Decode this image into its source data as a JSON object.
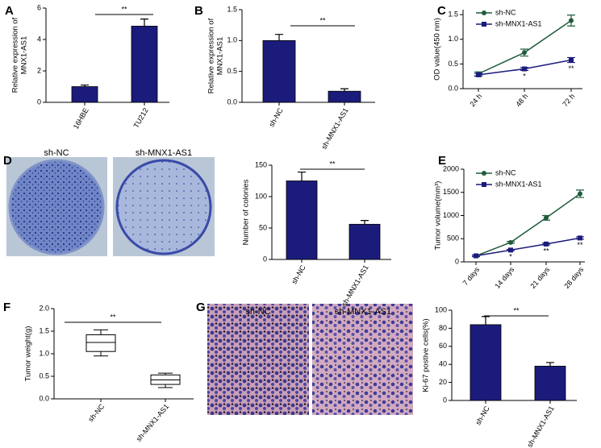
{
  "chart_data": [
    {
      "type": "bar",
      "label": "A",
      "ylabel": [
        "Relative expression of",
        "MNX1-AS1"
      ],
      "categories": [
        "16HBE",
        "TU212"
      ],
      "values": [
        1.0,
        4.85
      ],
      "errors": [
        0.1,
        0.45
      ],
      "color": "#1b1b7c",
      "ylim": [
        0,
        6
      ],
      "yticks": [
        0,
        2,
        4,
        6
      ],
      "annotations": [
        "**"
      ]
    },
    {
      "type": "bar",
      "label": "B",
      "ylabel": [
        "Relative expression of",
        "MNX1-AS1"
      ],
      "categories": [
        "sh-NC",
        "sh-MNX1-AS1"
      ],
      "values": [
        1.0,
        0.18
      ],
      "errors": [
        0.1,
        0.04
      ],
      "color": "#1b1b7c",
      "ylim": [
        0,
        1.5
      ],
      "yticks": [
        {
          "value": 0,
          "label": "0.0"
        },
        0.5,
        {
          "value": 1,
          "label": "1.0"
        },
        1.5
      ],
      "annotations": [
        "**"
      ]
    },
    {
      "type": "line",
      "label": "C",
      "ylabel": "OD value(450 nm)",
      "categories": [
        "24 h",
        "48 h",
        "72 h"
      ],
      "series": [
        {
          "name": "sh-NC",
          "color": "#1f5c3c",
          "marker": "circle",
          "values": [
            0.3,
            0.73,
            1.38
          ],
          "errors": [
            0.04,
            0.07,
            0.11
          ]
        },
        {
          "name": "sh-MNX1-AS1",
          "color": "#1b1b7c",
          "marker": "square",
          "values": [
            0.28,
            0.4,
            0.58
          ],
          "errors": [
            0.03,
            0.03,
            0.05
          ]
        }
      ],
      "ylim": [
        0,
        1.6
      ],
      "yticks": [
        {
          "value": 0,
          "label": "0.0"
        },
        0.5,
        {
          "value": 1,
          "label": "1.0"
        },
        1.5
      ],
      "annotations": [
        "*",
        "**"
      ]
    },
    {
      "type": "bar",
      "label": "D",
      "image_labels": [
        "sh-NC",
        "sh-MNX1-AS1"
      ],
      "ylabel": "Number of colonies",
      "categories": [
        "sh-NC",
        "sh-MNX1-AS1"
      ],
      "values": [
        125,
        56
      ],
      "errors": [
        14,
        6
      ],
      "color": "#1b1b7c",
      "ylim": [
        0,
        150
      ],
      "yticks": [
        0,
        50,
        100,
        150
      ],
      "annotations": [
        "**"
      ]
    },
    {
      "type": "line",
      "label": "E",
      "ylabel": "Tumor volume(mm³)",
      "categories": [
        "7 days",
        "14 days",
        "21 days",
        "28 days"
      ],
      "series": [
        {
          "name": "sh-NC",
          "color": "#1f5c3c",
          "marker": "circle",
          "values": [
            130,
            420,
            950,
            1470
          ],
          "errors": [
            20,
            20,
            50,
            80
          ]
        },
        {
          "name": "sh-MNX1-AS1",
          "color": "#1b1b7c",
          "marker": "square",
          "values": [
            130,
            255,
            385,
            515
          ],
          "errors": [
            15,
            15,
            20,
            25
          ]
        }
      ],
      "ylim": [
        0,
        2000
      ],
      "yticks": [
        0,
        500,
        1000,
        1500,
        2000
      ],
      "annotations": [
        "*",
        "**",
        "**"
      ]
    },
    {
      "type": "box",
      "label": "F",
      "ylabel": "Tumor weight(g)",
      "categories": [
        "sh-NC",
        "sh-MNX1-AS1"
      ],
      "boxes": [
        {
          "min": 0.95,
          "q1": 1.05,
          "median": 1.25,
          "q3": 1.42,
          "max": 1.53
        },
        {
          "min": 0.25,
          "q1": 0.32,
          "median": 0.42,
          "q3": 0.53,
          "max": 0.57
        }
      ],
      "ylim": [
        0,
        2
      ],
      "yticks": [
        {
          "value": 0,
          "label": "0.0"
        },
        0.5,
        {
          "value": 1,
          "label": "1.0"
        },
        1.5,
        {
          "value": 2,
          "label": "2.0"
        }
      ],
      "annotations": [
        "**"
      ]
    },
    {
      "type": "bar",
      "label": "G",
      "image_labels": [
        "sh-NC",
        "sh-MNX1-AS1"
      ],
      "ylabel": "Ki-67 postive cells(%)",
      "categories": [
        "sh-NC",
        "sh-MNX1-AS1"
      ],
      "values": [
        84,
        38
      ],
      "errors": [
        9,
        4
      ],
      "color": "#1b1b7c",
      "ylim": [
        0,
        100
      ],
      "yticks": [
        0,
        20,
        40,
        60,
        80,
        100
      ],
      "annotations": [
        "**"
      ]
    }
  ]
}
